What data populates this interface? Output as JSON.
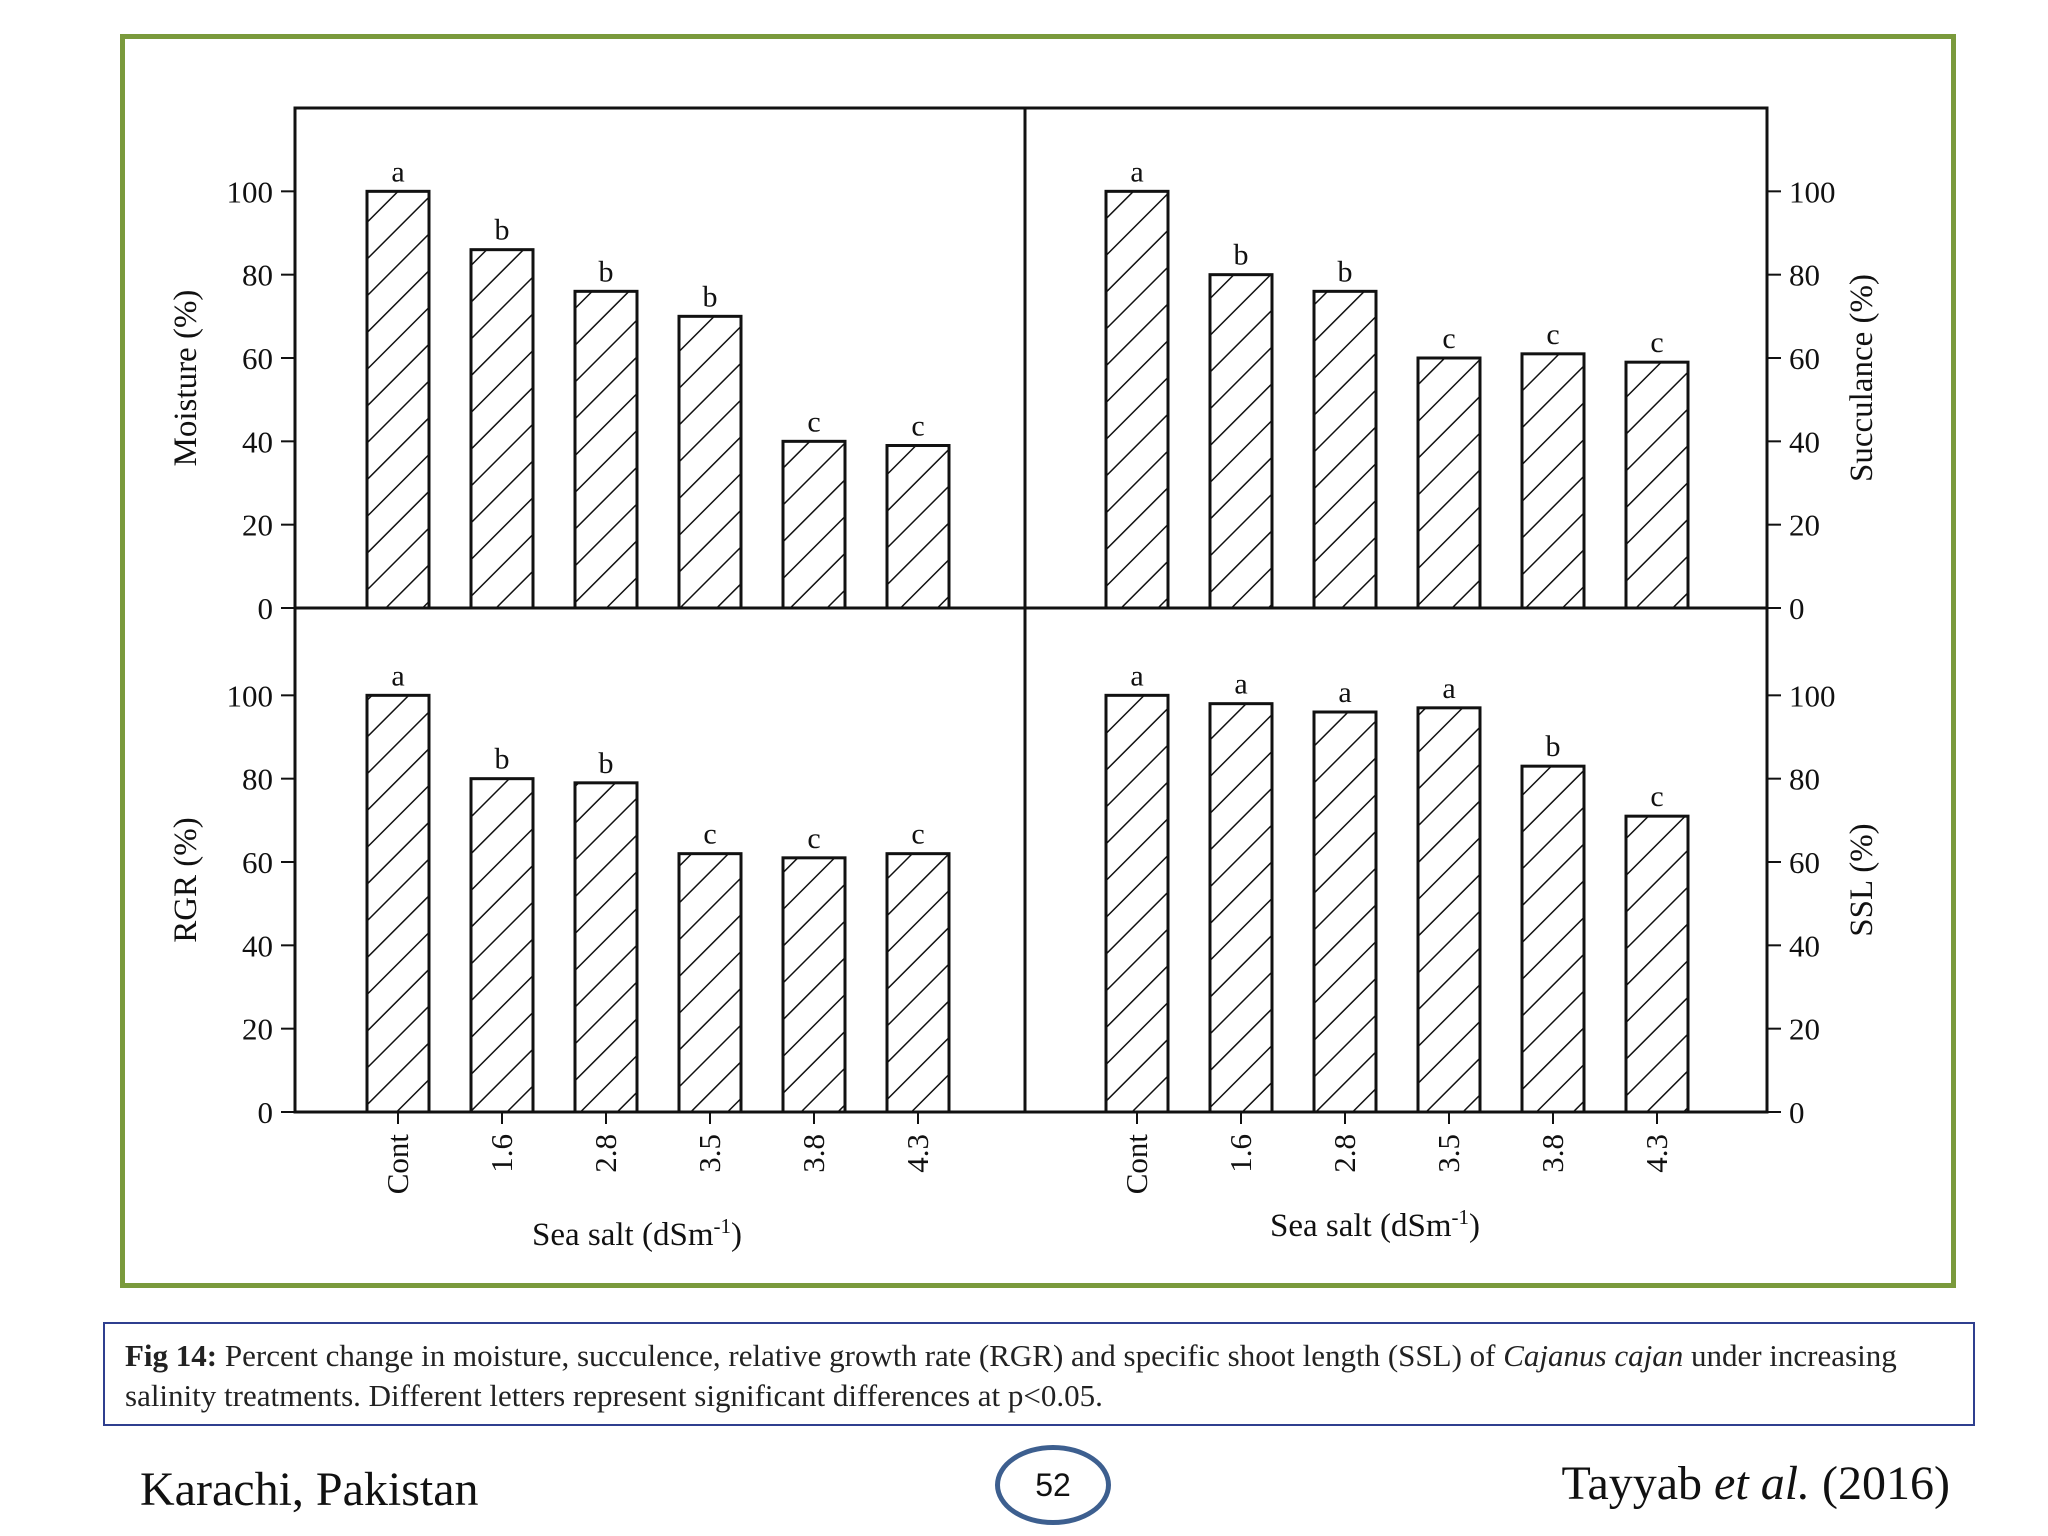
{
  "chart_data": {
    "type": "bar",
    "categories": [
      "Cont",
      "1.6",
      "2.8",
      "3.5",
      "3.8",
      "4.3"
    ],
    "xlabel": "Sea salt (dSm",
    "xlabel_sup": "-1",
    "xlabel_close": ")",
    "ylim": [
      0,
      120
    ],
    "yticks": [
      0,
      20,
      40,
      60,
      80,
      100
    ],
    "bar_fill": "hatched diagonal",
    "panels": [
      {
        "ylabel": "Moisture (%)",
        "axis_side": "left",
        "values": [
          100,
          86,
          76,
          70,
          40,
          39
        ],
        "letters": [
          "a",
          "b",
          "b",
          "b",
          "c",
          "c"
        ]
      },
      {
        "ylabel": "Succulance (%)",
        "axis_side": "right",
        "values": [
          100,
          80,
          76,
          60,
          61,
          59
        ],
        "letters": [
          "a",
          "b",
          "b",
          "c",
          "c",
          "c"
        ]
      },
      {
        "ylabel": "RGR (%)",
        "axis_side": "left",
        "values": [
          100,
          80,
          79,
          62,
          61,
          62
        ],
        "letters": [
          "a",
          "b",
          "b",
          "c",
          "c",
          "c"
        ]
      },
      {
        "ylabel": "SSL (%)",
        "axis_side": "right",
        "values": [
          100,
          98,
          96,
          97,
          83,
          71
        ],
        "letters": [
          "a",
          "a",
          "a",
          "a",
          "b",
          "c"
        ]
      }
    ]
  },
  "caption": {
    "label": "Fig 14:",
    "text_before": " Percent change in moisture, succulence, relative growth rate (RGR) and specific shoot length (SSL) of ",
    "species": "Cajanus cajan",
    "text_after": " under increasing salinity treatments. Different letters represent significant differences at p<0.05."
  },
  "footer": {
    "location": "Karachi, Pakistan",
    "page_number": "52",
    "citation_author": "Tayyab ",
    "citation_etal": "et al.",
    "citation_year": " (2016)"
  },
  "colors": {
    "frame_border": "#7a9a3c",
    "caption_border": "#2f3f8f",
    "page_circle": "#3d5f8f"
  }
}
